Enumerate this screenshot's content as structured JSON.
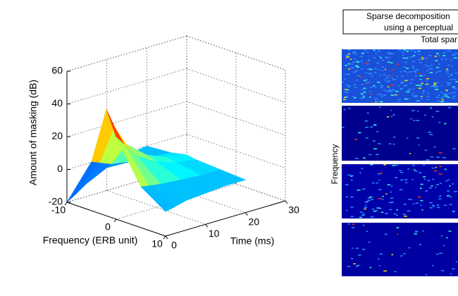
{
  "chart_data": {
    "type": "surface3d",
    "zlabel": "Amount of masking (dB)",
    "xlabel": "Frequency (ERB unit)",
    "ylabel": "Time (ms)",
    "x": [
      -10,
      -5,
      -2,
      0,
      5,
      10
    ],
    "y": [
      0,
      2,
      5,
      10,
      15,
      20
    ],
    "z": [
      [
        -20,
        -17,
        -12,
        -6,
        -2,
        0
      ],
      [
        10,
        8,
        5,
        3,
        2,
        1
      ],
      [
        45,
        33,
        20,
        10,
        5,
        3
      ],
      [
        30,
        24,
        15,
        8,
        4,
        2
      ],
      [
        5,
        4,
        3,
        2,
        1,
        1
      ],
      [
        -5,
        -4,
        -2,
        -1,
        0,
        0
      ]
    ],
    "xlim": [
      -10,
      10
    ],
    "xticks": [
      -10,
      0,
      10
    ],
    "ylim": [
      0,
      30
    ],
    "yticks": [
      0,
      10,
      20,
      30
    ],
    "zlim": [
      -20,
      60
    ],
    "zticks": [
      -20,
      0,
      20,
      40,
      60
    ],
    "grid": true,
    "colormap": "jet"
  },
  "side_panel": {
    "title_lines": [
      "Sparse decomposition",
      "using a perceptual"
    ],
    "subtitle": "Total spar",
    "ylabel": "Frequency"
  }
}
